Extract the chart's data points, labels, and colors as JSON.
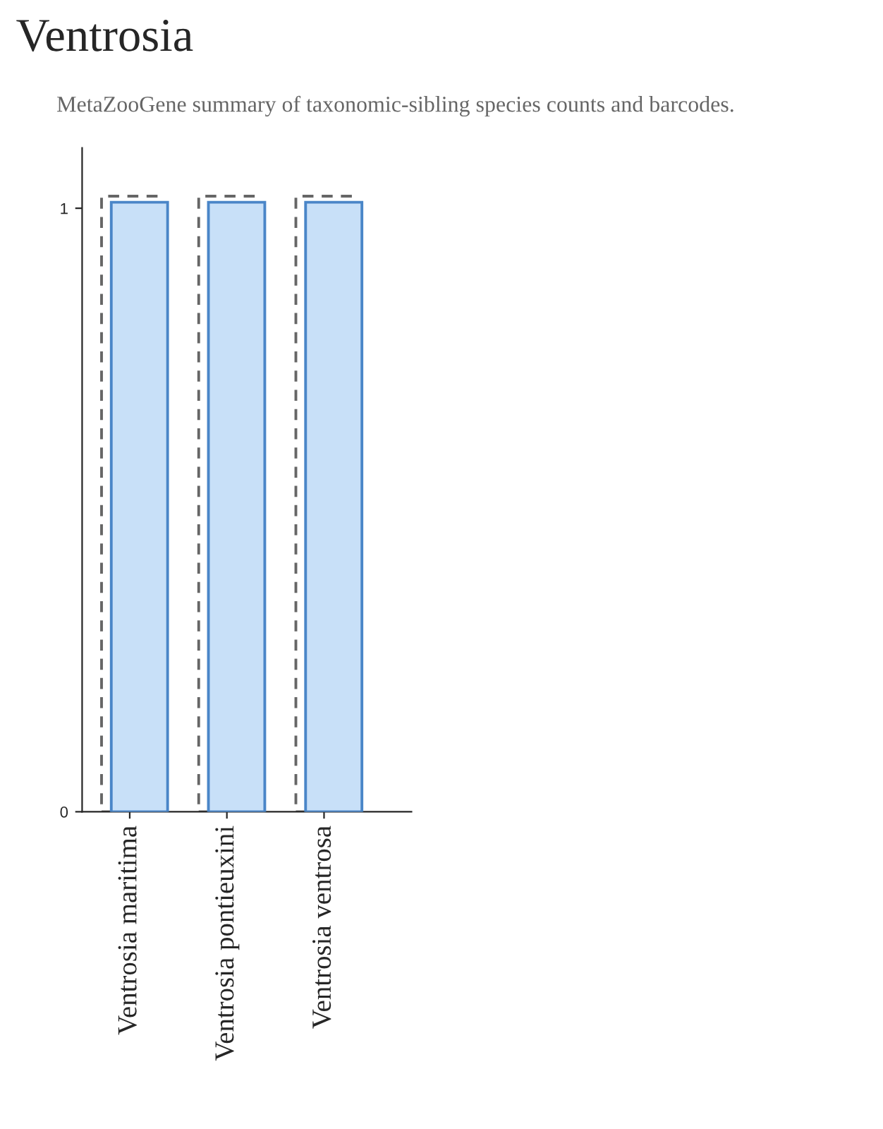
{
  "chart_data": {
    "type": "bar",
    "title": "Ventrosia",
    "subtitle": "MetaZooGene summary of taxonomic-sibling species counts and barcodes.",
    "categories": [
      "Ventrosia maritima",
      "Ventrosia pontieuxini",
      "Ventrosia ventrosa"
    ],
    "series": [
      {
        "color": "#666666",
        "line_style": "dashed",
        "values": [
          1.02,
          1.02,
          1.02
        ]
      },
      {
        "color": "#4a86c8",
        "line_style": "solid",
        "values": [
          1.01,
          1.01,
          1.01
        ]
      }
    ],
    "ylim": [
      0,
      1.1
    ],
    "yticks": [
      0,
      1
    ],
    "grid": false,
    "legend": false
  }
}
